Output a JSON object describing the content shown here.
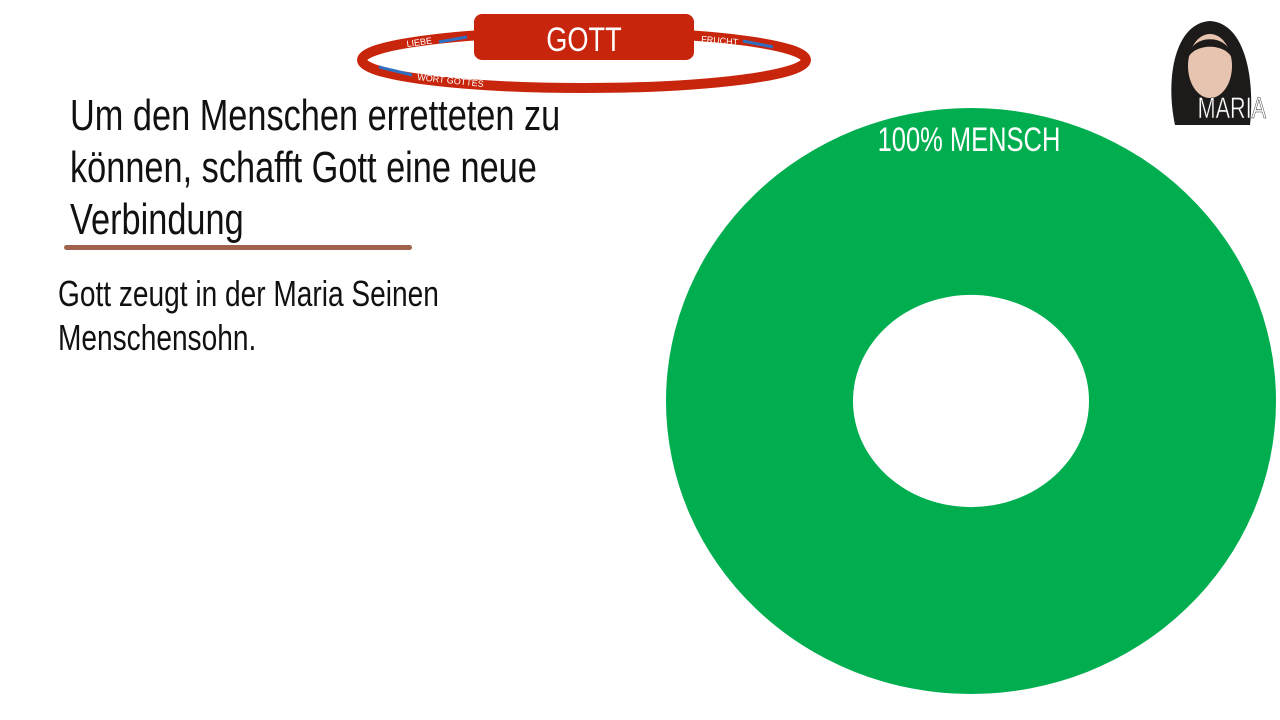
{
  "diagram": {
    "center_label": "GOTT",
    "ring_labels": {
      "left": "LIEBE",
      "right": "FRUCHT",
      "bottom": "WORT GOTTES"
    },
    "ring_color": "#c8250d",
    "arrow_color": "#2f6fc1"
  },
  "slide": {
    "title_lines": [
      "Um den Menschen erretteten zu",
      "können, schafft Gott eine neue",
      "Verbindung"
    ],
    "body_lines": [
      "Gott zeugt in der Maria Seinen",
      "Menschensohn."
    ]
  },
  "portrait": {
    "label": "MARIA"
  },
  "donut": {
    "label": "100% MENSCH",
    "percent": 100,
    "color": "#00ae4f"
  }
}
